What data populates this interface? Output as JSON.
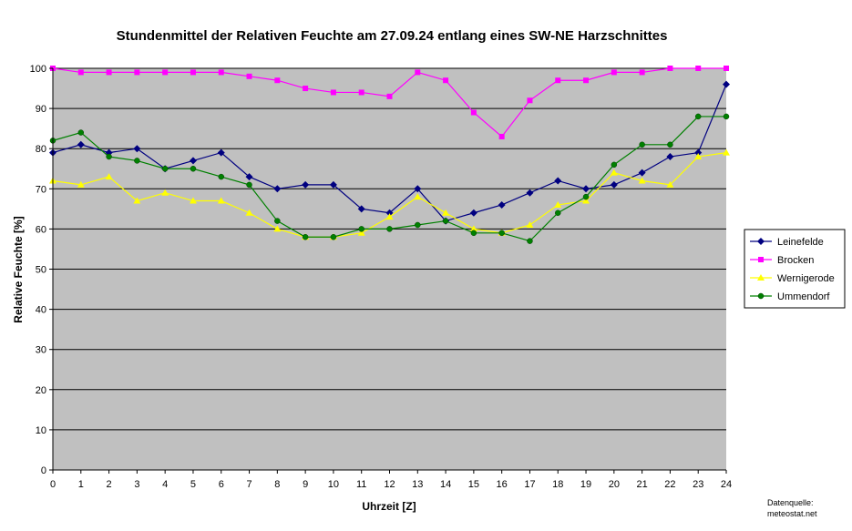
{
  "chart_data": {
    "type": "line",
    "title": "Stundenmittel der Relativen Feuchte am 27.09.24 entlang eines SW-NE Harzschnittes",
    "xlabel": "Uhrzeit [Z]",
    "ylabel": "Relative Feuchte  [%]",
    "xlim": [
      0,
      24
    ],
    "ylim": [
      0,
      100
    ],
    "x_ticks": [
      "0",
      "1",
      "2",
      "3",
      "4",
      "5",
      "6",
      "7",
      "8",
      "9",
      "10",
      "11",
      "12",
      "13",
      "14",
      "15",
      "16",
      "17",
      "18",
      "19",
      "20",
      "21",
      "22",
      "23",
      "24"
    ],
    "y_ticks": [
      "0",
      "10",
      "20",
      "30",
      "40",
      "50",
      "60",
      "70",
      "80",
      "90",
      "100"
    ],
    "grid": true,
    "legend_position": "right",
    "plot_background": "#c0c0c0",
    "x": [
      0,
      1,
      2,
      3,
      4,
      5,
      6,
      7,
      8,
      9,
      10,
      11,
      12,
      13,
      14,
      15,
      16,
      17,
      18,
      19,
      20,
      21,
      22,
      23,
      24
    ],
    "series": [
      {
        "name": "Leinefelde",
        "color": "#000080",
        "marker": "diamond",
        "values": [
          79,
          81,
          79,
          80,
          75,
          77,
          79,
          73,
          70,
          71,
          71,
          65,
          64,
          70,
          62,
          64,
          66,
          69,
          72,
          70,
          71,
          74,
          78,
          79,
          96
        ]
      },
      {
        "name": "Brocken",
        "color": "#ff00ff",
        "marker": "square",
        "values": [
          100,
          99,
          99,
          99,
          99,
          99,
          99,
          98,
          97,
          95,
          94,
          94,
          93,
          99,
          97,
          89,
          83,
          92,
          97,
          97,
          99,
          99,
          100,
          100,
          100
        ]
      },
      {
        "name": "Wernigerode",
        "color": "#ffff00",
        "marker": "triangle",
        "values": [
          72,
          71,
          73,
          67,
          69,
          67,
          67,
          64,
          60,
          58,
          58,
          59,
          63,
          68,
          64,
          60,
          59,
          61,
          66,
          67,
          74,
          72,
          71,
          78,
          79
        ]
      },
      {
        "name": "Ummendorf",
        "color": "#008000",
        "marker": "circle",
        "values": [
          82,
          84,
          78,
          77,
          75,
          75,
          73,
          71,
          62,
          58,
          58,
          60,
          60,
          61,
          62,
          59,
          59,
          57,
          64,
          68,
          76,
          81,
          81,
          88,
          88
        ]
      }
    ]
  },
  "source_label": "Datenquelle:",
  "source_value": "meteostat.net"
}
